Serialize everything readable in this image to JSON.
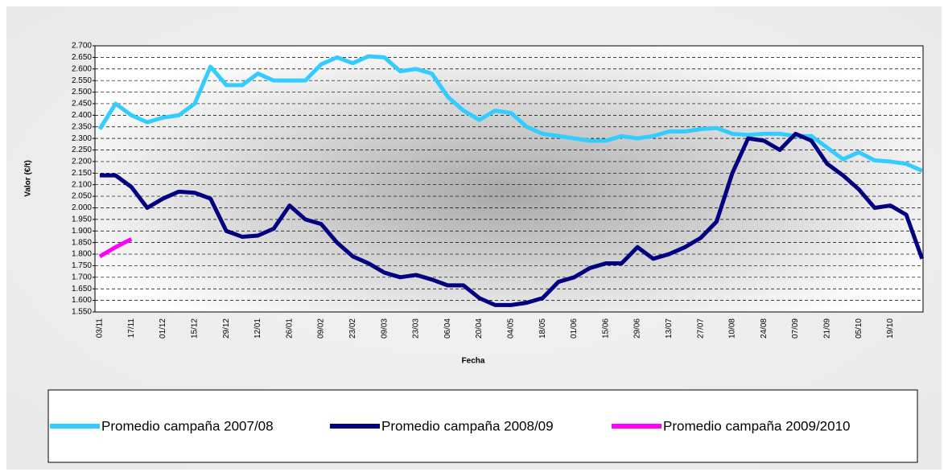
{
  "chart_data": {
    "type": "line",
    "x_label": "Fecha",
    "y_label": "Valor (€/t)",
    "categories": [
      "03/11",
      null,
      "17/11",
      null,
      "01/12",
      null,
      "15/12",
      null,
      "29/12",
      null,
      "12/01",
      null,
      "26/01",
      null,
      "09/02",
      null,
      "23/02",
      null,
      "09/03",
      null,
      "23/03",
      null,
      "06/04",
      null,
      "20/04",
      null,
      "04/05",
      null,
      "18/05",
      null,
      "01/06",
      null,
      "15/06",
      null,
      "29/06",
      null,
      "13/07",
      null,
      "27/07",
      null,
      "10/08",
      null,
      "24/08",
      null,
      "07/09",
      null,
      "21/09",
      null,
      "05/10",
      null,
      "19/10",
      null,
      null
    ],
    "series": [
      {
        "name": "Promedio campaña 2007/08",
        "color": "#33ccff",
        "values": [
          2340,
          2450,
          2400,
          2370,
          2390,
          2400,
          2450,
          2610,
          2530,
          2530,
          2580,
          2550,
          2550,
          2550,
          2620,
          2650,
          2625,
          2655,
          2650,
          2590,
          2600,
          2580,
          2480,
          2420,
          2380,
          2420,
          2410,
          2350,
          2320,
          2310,
          2300,
          2290,
          2290,
          2310,
          2300,
          2310,
          2330,
          2330,
          2340,
          2345,
          2320,
          2315,
          2320,
          2320,
          2310,
          2310,
          2260,
          2210,
          2240,
          2205,
          2200,
          2190,
          2160
        ]
      },
      {
        "name": "Promedio campaña 2008/09",
        "color": "#000080",
        "values": [
          2140,
          2140,
          2090,
          2000,
          2040,
          2070,
          2065,
          2040,
          1900,
          1875,
          1880,
          1910,
          2010,
          1950,
          1930,
          1850,
          1790,
          1760,
          1720,
          1700,
          1710,
          1690,
          1665,
          1665,
          1610,
          1580,
          1580,
          1590,
          1610,
          1680,
          1700,
          1740,
          1760,
          1760,
          1830,
          1780,
          1800,
          1830,
          1870,
          1940,
          2150,
          2300,
          2290,
          2250,
          2320,
          2290,
          2190,
          2140,
          2080,
          2000,
          2010,
          1970,
          1780
        ]
      },
      {
        "name": "Promedio campaña 2009/2010",
        "color": "#ff00ff",
        "values": [
          1790,
          1830,
          1865,
          null,
          null,
          null,
          null,
          null,
          null,
          null,
          null,
          null,
          null,
          null,
          null,
          null,
          null,
          null,
          null,
          null,
          null,
          null,
          null,
          null,
          null,
          null,
          null,
          null,
          null,
          null,
          null,
          null,
          null,
          null,
          null,
          null,
          null,
          null,
          null,
          null,
          null,
          null,
          null,
          null,
          null,
          null,
          null,
          null,
          null,
          null,
          null,
          null,
          null
        ]
      }
    ],
    "ylim": [
      1550,
      2700
    ],
    "yticks": [
      {
        "value": 1550,
        "label": "1.550"
      },
      {
        "value": 1600,
        "label": "1.600"
      },
      {
        "value": 1650,
        "label": "1.650"
      },
      {
        "value": 1700,
        "label": "1.700"
      },
      {
        "value": 1750,
        "label": "1.750"
      },
      {
        "value": 1800,
        "label": "1.800"
      },
      {
        "value": 1850,
        "label": "1.850"
      },
      {
        "value": 1900,
        "label": "1.900"
      },
      {
        "value": 1950,
        "label": "1.950"
      },
      {
        "value": 2000,
        "label": "2.000"
      },
      {
        "value": 2050,
        "label": "2.050"
      },
      {
        "value": 2100,
        "label": "2.100"
      },
      {
        "value": 2150,
        "label": "2.150"
      },
      {
        "value": 2200,
        "label": "2.200"
      },
      {
        "value": 2250,
        "label": "2.250"
      },
      {
        "value": 2300,
        "label": "2.300"
      },
      {
        "value": 2350,
        "label": "2.350"
      },
      {
        "value": 2400,
        "label": "2.400"
      },
      {
        "value": 2450,
        "label": "2.450"
      },
      {
        "value": 2500,
        "label": "2.500"
      },
      {
        "value": 2550,
        "label": "2.550"
      },
      {
        "value": 2600,
        "label": "2.600"
      },
      {
        "value": 2650,
        "label": "2.650"
      },
      {
        "value": 2700,
        "label": "2.700"
      }
    ],
    "grid": true,
    "legend": "bottom"
  }
}
